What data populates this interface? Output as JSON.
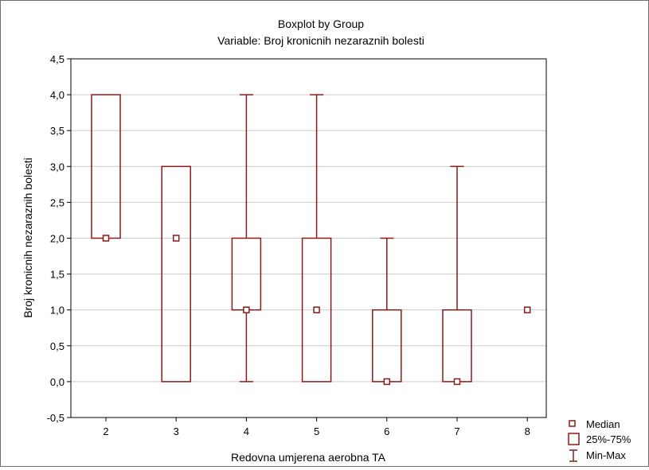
{
  "chart_data": {
    "type": "boxplot",
    "title": "Boxplot by Group",
    "subtitle": "Variable: Broj kronicnih nezaraznih bolesti",
    "xlabel": "Redovna umjerena aerobna TA",
    "ylabel": "Broj kronicnih nezaraznih bolesti",
    "ylim": [
      -0.5,
      4.5
    ],
    "yticks": [
      -0.5,
      0.0,
      0.5,
      1.0,
      1.5,
      2.0,
      2.5,
      3.0,
      3.5,
      4.0,
      4.5
    ],
    "ytick_labels": [
      "-0,5",
      "0,0",
      "0,5",
      "1,0",
      "1,5",
      "2,0",
      "2,5",
      "3,0",
      "3,5",
      "4,0",
      "4,5"
    ],
    "categories": [
      "2",
      "3",
      "4",
      "5",
      "6",
      "7",
      "8"
    ],
    "grid": true,
    "legend_position": "bottom-right",
    "legend": [
      "Median",
      "25%-75%",
      "Min-Max"
    ],
    "color": "#8b1a1a",
    "groups": [
      {
        "group": "2",
        "median": 2,
        "q1": 2,
        "q3": 4,
        "min": 2,
        "max": 4
      },
      {
        "group": "3",
        "median": 2,
        "q1": 0,
        "q3": 3,
        "min": 0,
        "max": 3
      },
      {
        "group": "4",
        "median": 1,
        "q1": 1,
        "q3": 2,
        "min": 0,
        "max": 4
      },
      {
        "group": "5",
        "median": 1,
        "q1": 0,
        "q3": 2,
        "min": 0,
        "max": 4
      },
      {
        "group": "6",
        "median": 0,
        "q1": 0,
        "q3": 1,
        "min": 0,
        "max": 2
      },
      {
        "group": "7",
        "median": 0,
        "q1": 0,
        "q3": 1,
        "min": 0,
        "max": 3
      },
      {
        "group": "8",
        "median": 1,
        "q1": 1,
        "q3": 1,
        "min": 1,
        "max": 1
      }
    ]
  }
}
